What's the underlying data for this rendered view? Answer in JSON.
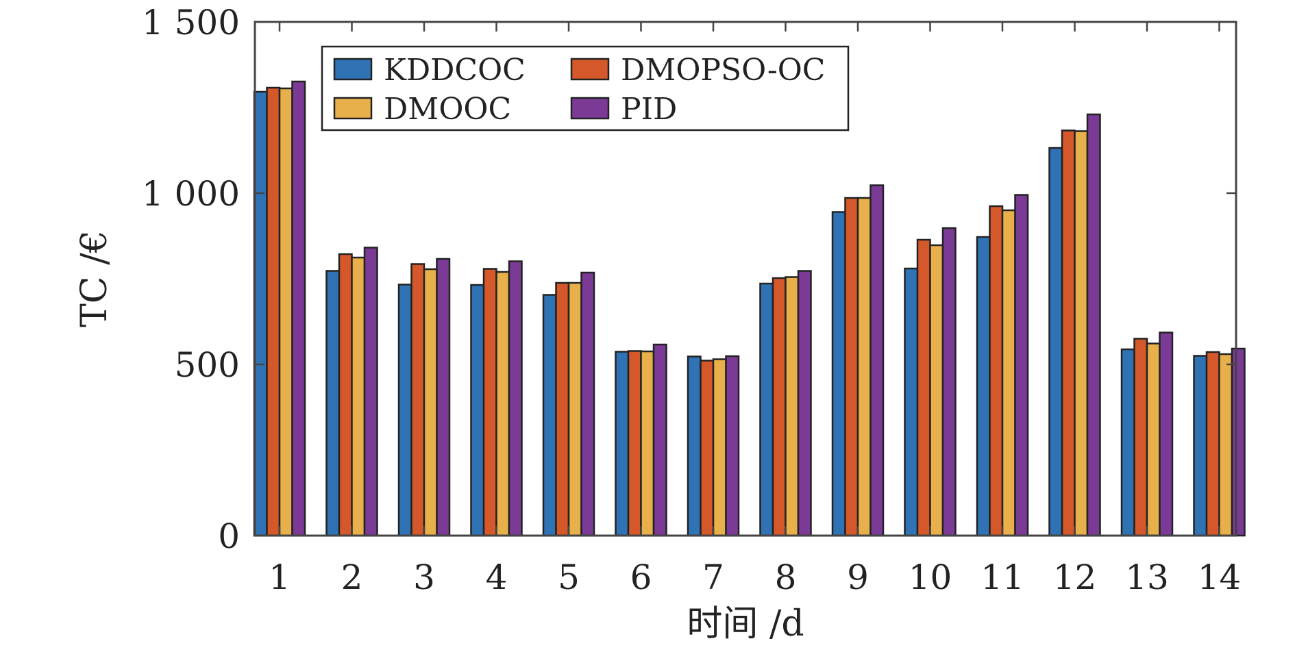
{
  "chart_data": {
    "type": "bar",
    "xlabel": "时间 /d",
    "ylabel": "TC /€",
    "ylim": [
      0,
      1500
    ],
    "y_ticks": [
      "0",
      "500",
      "1 000",
      "1 500"
    ],
    "categories": [
      "1",
      "2",
      "3",
      "4",
      "5",
      "6",
      "7",
      "8",
      "9",
      "10",
      "11",
      "12",
      "13",
      "14"
    ],
    "grid": false,
    "legend_position": "top-left",
    "series": [
      {
        "name": "KDDCOC",
        "color": "#2f73b5",
        "values": [
          1296,
          773,
          733,
          732,
          703,
          537,
          523,
          736,
          945,
          780,
          872,
          1132,
          544,
          525
        ]
      },
      {
        "name": "DMOPSO-OC",
        "color": "#d4582a",
        "values": [
          1308,
          822,
          793,
          779,
          738,
          539,
          511,
          752,
          986,
          864,
          962,
          1183,
          575,
          536
        ]
      },
      {
        "name": "DMOOC",
        "color": "#e8b04a",
        "values": [
          1306,
          812,
          778,
          770,
          738,
          538,
          515,
          755,
          986,
          848,
          950,
          1181,
          561,
          530
        ]
      },
      {
        "name": "PID",
        "color": "#7b3a96",
        "values": [
          1326,
          841,
          808,
          801,
          768,
          558,
          524,
          773,
          1023,
          898,
          995,
          1230,
          593,
          546
        ]
      }
    ]
  }
}
